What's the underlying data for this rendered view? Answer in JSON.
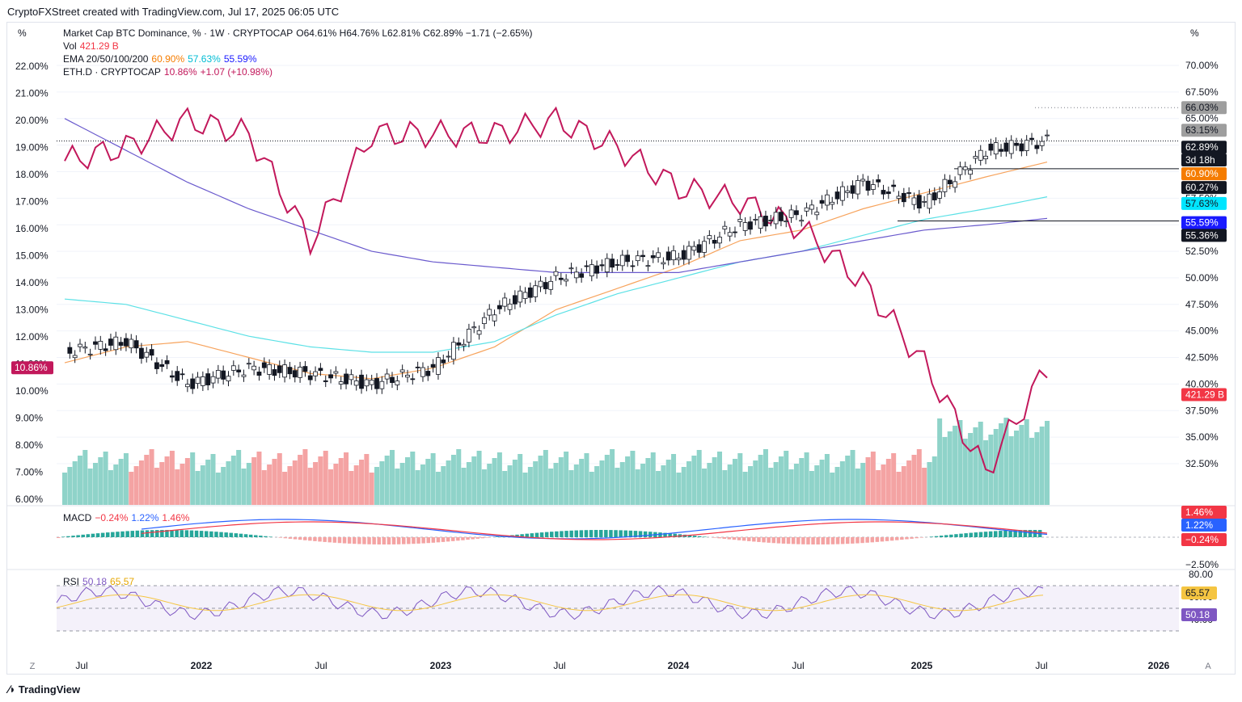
{
  "header": "CryptoFXStreet created with TradingView.com, Jul 17, 2025 06:05 UTC",
  "footer": {
    "brand": "TradingView"
  },
  "units": {
    "left": "%",
    "right": "%"
  },
  "legend": {
    "title": "Market Cap BTC Dominance, % · 1W · CRYPTOCAP",
    "ohlc": "O64.61%  H64.76%  L62.81%  C62.89%  −1.71 (−2.65%)",
    "vol_label": "Vol",
    "vol_value": "421.29 B",
    "ema_label": "EMA 20/50/100/200",
    "ema20": "60.90%",
    "ema50": "57.63%",
    "ema100": "55.59%",
    "eth_label": "ETH.D · CRYPTOCAP",
    "eth_value": "10.86%",
    "eth_change": "+1.07 (+10.98%)",
    "macd_label": "MACD",
    "macd_hist": "−0.24%",
    "macd_line": "1.22%",
    "macd_signal": "1.46%",
    "rsi_label": "RSI",
    "rsi_value": "50.18",
    "rsi_ma": "65.57"
  },
  "colors": {
    "up": "#ffffff",
    "down": "#131722",
    "ema20": "#f7a35c",
    "ema50": "#5ce1e6",
    "ema100": "#6a5acd",
    "eth": "#c2185b",
    "vol_up": "#8fd3c9",
    "vol_down": "#f4a3a3",
    "macd": "#2962ff",
    "signal": "#f23645",
    "rsi": "#7e57c2",
    "rsi_ma": "#f5c542"
  },
  "right_axis_ticks": [
    "70.00%",
    "67.50%",
    "65.00%",
    "62.50%",
    "60.00%",
    "57.50%",
    "55.00%",
    "52.50%",
    "50.00%",
    "47.50%",
    "45.00%",
    "42.50%",
    "40.00%",
    "37.50%",
    "35.00%",
    "32.50%"
  ],
  "left_axis_ticks": [
    "22.00%",
    "21.00%",
    "20.00%",
    "19.00%",
    "18.00%",
    "17.00%",
    "16.00%",
    "15.00%",
    "14.00%",
    "13.00%",
    "12.00%",
    "11.00%",
    "10.00%",
    "9.00%",
    "8.00%",
    "7.00%",
    "6.00%"
  ],
  "price_tags": [
    {
      "text": "66.03%",
      "bg": "#9e9e9e",
      "fg": "#131722"
    },
    {
      "text": "63.15%",
      "bg": "#9e9e9e",
      "fg": "#131722"
    },
    {
      "text": "62.89%",
      "bg": "#131722",
      "fg": "#ffffff"
    },
    {
      "text": "3d 18h",
      "bg": "#131722",
      "fg": "#ffffff"
    },
    {
      "text": "60.90%",
      "bg": "#f57c00",
      "fg": "#ffffff"
    },
    {
      "text": "60.27%",
      "bg": "#131722",
      "fg": "#ffffff"
    },
    {
      "text": "57.63%",
      "bg": "#00e5ff",
      "fg": "#131722"
    },
    {
      "text": "55.59%",
      "bg": "#1a1aff",
      "fg": "#ffffff"
    },
    {
      "text": "55.36%",
      "bg": "#131722",
      "fg": "#ffffff"
    },
    {
      "text": "421.29 B",
      "bg": "#f23645",
      "fg": "#ffffff"
    }
  ],
  "eth_tag": "10.86%",
  "macd_tags": [
    {
      "text": "1.46%",
      "bg": "#f23645",
      "fg": "#ffffff"
    },
    {
      "text": "1.22%",
      "bg": "#2962ff",
      "fg": "#ffffff"
    },
    {
      "text": "−0.24%",
      "bg": "#f23645",
      "fg": "#ffffff"
    }
  ],
  "macd_axis": "−2.50%",
  "rsi_axis": [
    "80.00",
    "60.00",
    "40.00"
  ],
  "rsi_tags": [
    {
      "text": "65.57",
      "bg": "#f5c542",
      "fg": "#131722"
    },
    {
      "text": "50.18",
      "bg": "#7e57c2",
      "fg": "#ffffff"
    }
  ],
  "time_axis": [
    "Jul",
    "2022",
    "Jul",
    "2023",
    "Jul",
    "2024",
    "Jul",
    "2025",
    "Jul",
    "2026"
  ],
  "corner_labels": {
    "left": "Z",
    "right": "A"
  },
  "chart_data": {
    "type": "line",
    "title": "Market Cap BTC Dominance, % · 1W · CRYPTOCAP",
    "x": [
      "2021-07",
      "2021-10",
      "2022-01",
      "2022-04",
      "2022-07",
      "2022-10",
      "2023-01",
      "2023-04",
      "2023-07",
      "2023-10",
      "2024-01",
      "2024-04",
      "2024-07",
      "2024-10",
      "2025-01",
      "2025-04",
      "2025-07"
    ],
    "series": [
      {
        "name": "Market Cap BTC Dominance",
        "axis": "right",
        "values": [
          43.0,
          44.0,
          40.0,
          41.5,
          41.0,
          40.0,
          41.5,
          47.0,
          50.0,
          51.5,
          52.0,
          55.0,
          56.0,
          59.0,
          57.0,
          62.0,
          62.89
        ]
      },
      {
        "name": "ETH.D · CRYPTOCAP",
        "axis": "left",
        "values": [
          18.5,
          19.0,
          20.0,
          19.5,
          15.5,
          19.5,
          19.5,
          19.5,
          20.0,
          19.0,
          17.5,
          17.0,
          16.0,
          14.0,
          11.0,
          7.0,
          10.86
        ]
      },
      {
        "name": "EMA 20",
        "axis": "right",
        "values": [
          42.0,
          43.5,
          44.0,
          42.5,
          41.0,
          40.5,
          41.5,
          43.5,
          47.0,
          49.0,
          51.0,
          53.5,
          54.5,
          56.5,
          58.0,
          59.5,
          60.9
        ]
      },
      {
        "name": "EMA 50",
        "axis": "right",
        "values": [
          48.0,
          47.5,
          46.0,
          44.5,
          43.5,
          43.0,
          43.0,
          44.0,
          46.5,
          48.5,
          50.0,
          51.5,
          52.5,
          54.0,
          55.5,
          56.5,
          57.63
        ]
      },
      {
        "name": "EMA 100",
        "axis": "right",
        "values": [
          65.0,
          62.0,
          59.0,
          56.5,
          54.5,
          52.5,
          51.5,
          51.0,
          50.5,
          50.5,
          50.5,
          51.5,
          52.5,
          53.5,
          54.5,
          55.0,
          55.59
        ]
      }
    ],
    "y_right": [
      32.5,
      70.0
    ],
    "y_left": [
      6.0,
      22.0
    ],
    "macd": {
      "macd": 1.22,
      "signal": 1.46,
      "hist": -0.24
    },
    "rsi": {
      "value": 50.18,
      "ma": 65.57,
      "levels": [
        70,
        50,
        30
      ]
    }
  }
}
